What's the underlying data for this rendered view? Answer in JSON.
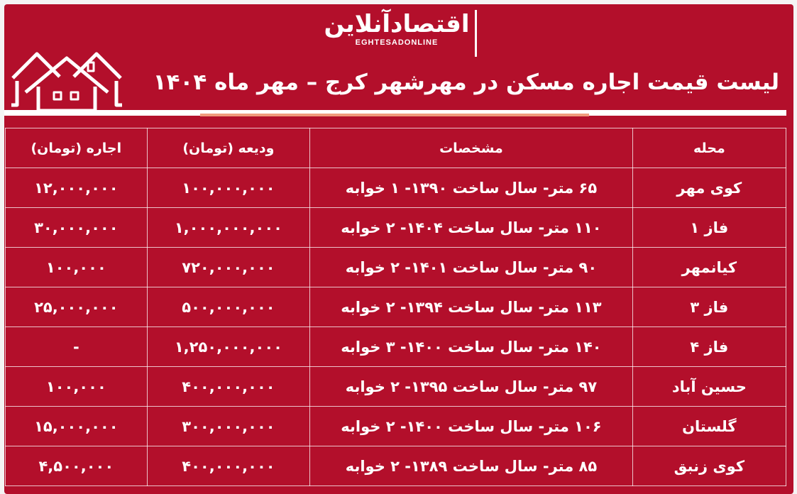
{
  "brand": {
    "logo_fa": "اقتصادآنلاین",
    "logo_en": "EGHTESADONLINE"
  },
  "title": "لیست قیمت اجاره مسکن در مهرشهر کرج – مهر ماه ۱۴۰۴",
  "colors": {
    "background": "#b30f2b",
    "text": "#ffffff",
    "accent_line": "#f09a7c"
  },
  "icons": {
    "header_illustration": "houses-icon"
  },
  "table": {
    "headers": [
      "محله",
      "مشخصات",
      "ودیعه (تومان)",
      "اجاره (تومان)"
    ],
    "rows": [
      [
        "کوی مهر",
        "۶۵ متر- سال ساخت ۱۳۹۰- ۱ خوابه",
        "۱۰۰,۰۰۰,۰۰۰",
        "۱۲,۰۰۰,۰۰۰"
      ],
      [
        "فاز ۱",
        "۱۱۰ متر- سال ساخت ۱۴۰۴- ۲ خوابه",
        "۱,۰۰۰,۰۰۰,۰۰۰",
        "۳۰,۰۰۰,۰۰۰"
      ],
      [
        "کیانمهر",
        "۹۰ متر- سال ساخت ۱۴۰۱- ۲ خوابه",
        "۷۲۰,۰۰۰,۰۰۰",
        "۱۰۰,۰۰۰"
      ],
      [
        "فاز ۳",
        "۱۱۳ متر- سال ساخت ۱۳۹۴- ۲ خوابه",
        "۵۰۰,۰۰۰,۰۰۰",
        "۲۵,۰۰۰,۰۰۰"
      ],
      [
        "فاز ۴",
        "۱۴۰ متر- سال ساخت ۱۴۰۰- ۳ خوابه",
        "۱,۲۵۰,۰۰۰,۰۰۰",
        "-"
      ],
      [
        "حسین آباد",
        "۹۷ متر- سال ساخت ۱۳۹۵- ۲ خوابه",
        "۴۰۰,۰۰۰,۰۰۰",
        "۱۰۰,۰۰۰"
      ],
      [
        "گلستان",
        "۱۰۶ متر- سال ساخت ۱۴۰۰- ۲ خوابه",
        "۳۰۰,۰۰۰,۰۰۰",
        "۱۵,۰۰۰,۰۰۰"
      ],
      [
        "کوی زنبق",
        "۸۵ متر- سال ساخت ۱۳۸۹- ۲ خوابه",
        "۴۰۰,۰۰۰,۰۰۰",
        "۴,۵۰۰,۰۰۰"
      ]
    ]
  }
}
